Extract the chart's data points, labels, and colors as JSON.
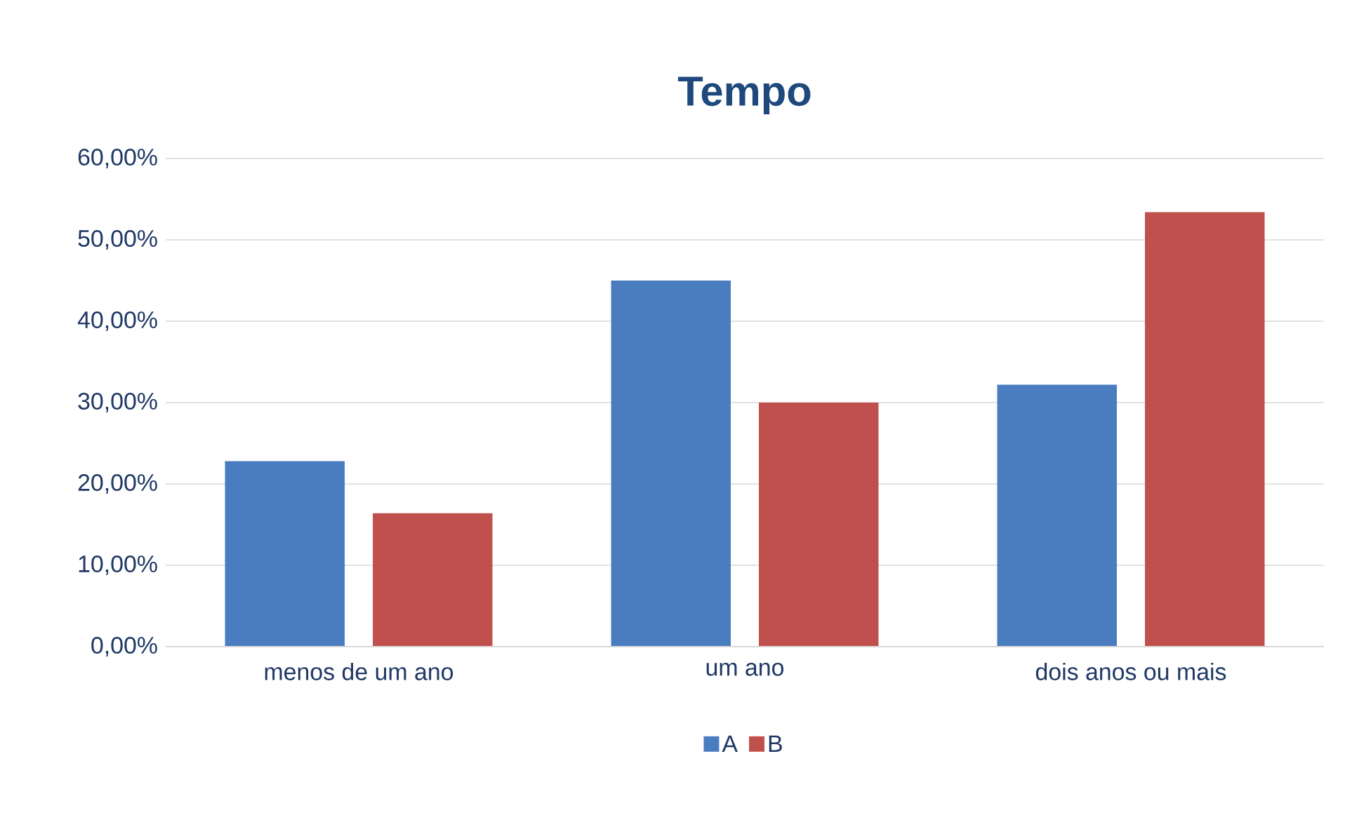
{
  "chart_data": {
    "type": "bar",
    "title": "Tempo",
    "categories": [
      "menos de um ano",
      "um ano",
      "dois anos ou mais"
    ],
    "series": [
      {
        "name": "A",
        "color": "#4a7cc0",
        "values": [
          22.8,
          45.0,
          32.2
        ]
      },
      {
        "name": "B",
        "color": "#c0504d",
        "values": [
          16.4,
          30.0,
          53.4
        ]
      }
    ],
    "ylim": [
      0,
      60
    ],
    "yticks": [
      {
        "value": 0,
        "label": "0,00%"
      },
      {
        "value": 10,
        "label": "10,00%"
      },
      {
        "value": 20,
        "label": "20,00%"
      },
      {
        "value": 30,
        "label": "30,00%"
      },
      {
        "value": 40,
        "label": "40,00%"
      },
      {
        "value": 50,
        "label": "50,00%"
      },
      {
        "value": 60,
        "label": "60,00%"
      }
    ],
    "grid": "y",
    "legend": "bottom"
  }
}
